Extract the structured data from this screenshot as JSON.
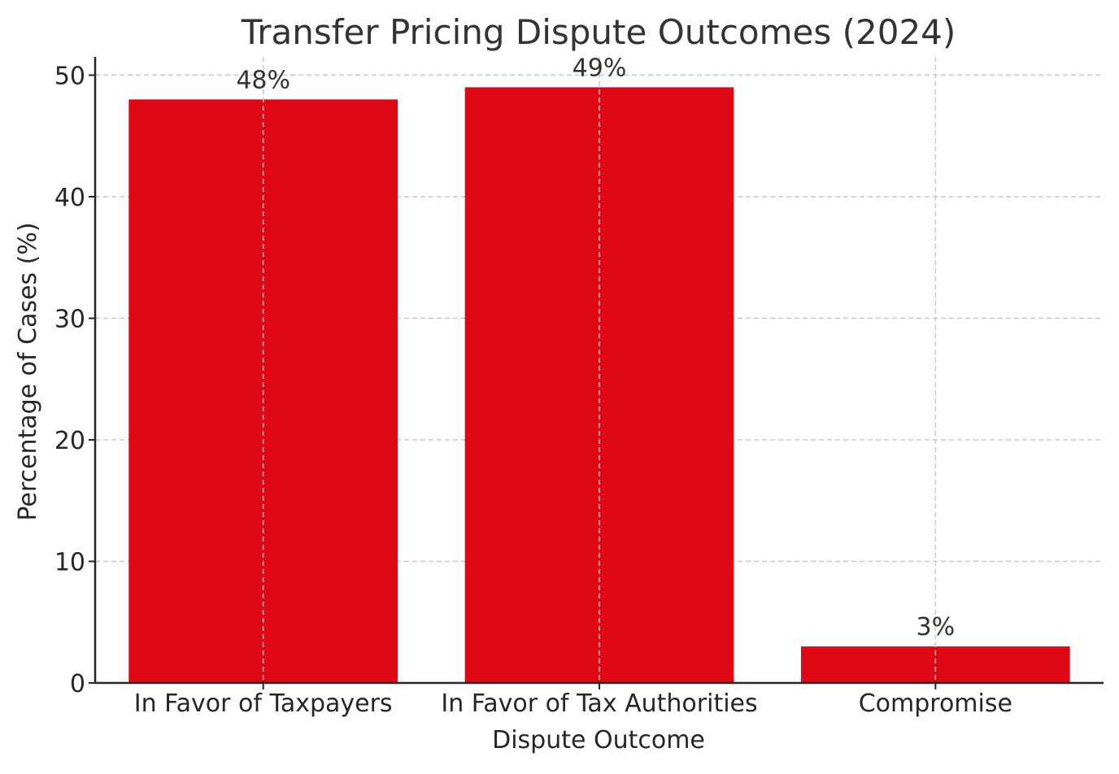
{
  "chart_data": {
    "type": "bar",
    "title": "Transfer Pricing Dispute Outcomes (2024)",
    "xlabel": "Dispute Outcome",
    "ylabel": "Percentage of Cases (%)",
    "categories": [
      "In Favor of Taxpayers",
      "In Favor of Tax Authorities",
      "Compromise"
    ],
    "values": [
      48,
      49,
      3
    ],
    "data_labels": [
      "48%",
      "49%",
      "3%"
    ],
    "ylim": [
      0,
      51.5
    ],
    "yticks": [
      0,
      10,
      20,
      30,
      40,
      50
    ],
    "grid": true,
    "bar_color": "#e00814"
  }
}
